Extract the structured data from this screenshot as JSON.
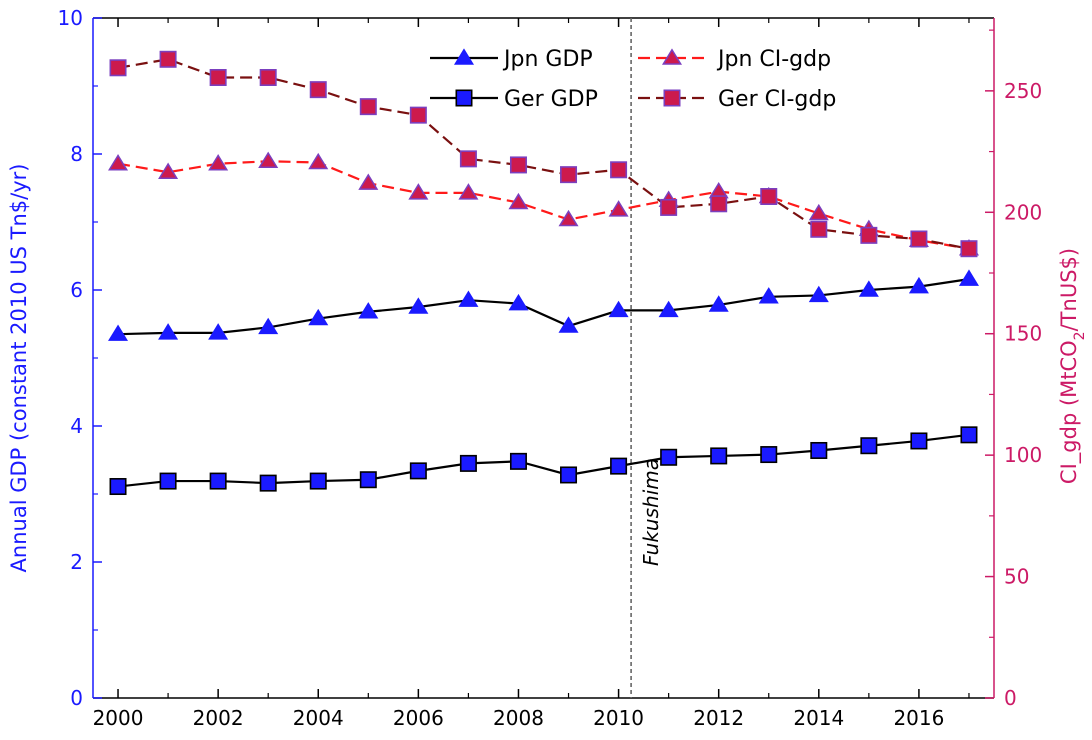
{
  "chart_data": {
    "type": "line",
    "x": [
      2000,
      2001,
      2002,
      2003,
      2004,
      2005,
      2006,
      2007,
      2008,
      2009,
      2010,
      2011,
      2012,
      2013,
      2014,
      2015,
      2016,
      2017
    ],
    "xlim": [
      1999.5,
      2017.5
    ],
    "xticks": [
      "2000",
      "2002",
      "2004",
      "2006",
      "2008",
      "2010",
      "2012",
      "2014",
      "2016"
    ],
    "ylabel_left": "Annual GDP (constant 2010 US Tn$/yr)",
    "ylim_left": [
      0,
      10
    ],
    "yticks_left": [
      "0",
      "2",
      "4",
      "6",
      "8",
      "10"
    ],
    "ylabel_right_prefix": "CI_gdp (MtCO",
    "ylabel_right_sub": "2",
    "ylabel_right_suffix": "/TnUS$)",
    "ylim_right": [
      0,
      280
    ],
    "yticks_right": [
      "0",
      "50",
      "100",
      "150",
      "200",
      "250"
    ],
    "series": [
      {
        "name": "Jpn GDP",
        "axis": "left",
        "marker": "triangle",
        "line": "solid",
        "line_color": "#000000",
        "marker_fill": "#1a1aff",
        "marker_edge": "#1a1aff",
        "values": [
          5.35,
          5.37,
          5.37,
          5.45,
          5.58,
          5.68,
          5.75,
          5.85,
          5.8,
          5.47,
          5.7,
          5.7,
          5.78,
          5.9,
          5.92,
          6.0,
          6.05,
          6.16
        ]
      },
      {
        "name": "Ger GDP",
        "axis": "left",
        "marker": "square",
        "line": "solid",
        "line_color": "#000000",
        "marker_fill": "#1a1aff",
        "marker_edge": "#000000",
        "values": [
          3.11,
          3.19,
          3.19,
          3.16,
          3.19,
          3.21,
          3.34,
          3.45,
          3.48,
          3.28,
          3.41,
          3.54,
          3.56,
          3.58,
          3.64,
          3.71,
          3.78,
          3.87
        ]
      },
      {
        "name": "Jpn CI-gdp",
        "axis": "right",
        "marker": "triangle",
        "line": "dashed",
        "line_color": "#ff1a1a",
        "marker_fill": "#cc1a4d",
        "marker_edge": "#7b3fbf",
        "values": [
          220,
          216.5,
          220,
          221,
          220.5,
          212,
          208,
          208,
          204,
          197,
          201,
          205,
          208.5,
          206.5,
          199.5,
          193,
          188.5,
          185
        ]
      },
      {
        "name": "Ger CI-gdp",
        "axis": "right",
        "marker": "square",
        "line": "dashed",
        "line_color": "#7a1010",
        "marker_fill": "#cc1a4d",
        "marker_edge": "#7b3fbf",
        "values": [
          259.5,
          263,
          255.5,
          255.5,
          250.5,
          243.5,
          240,
          222,
          219.5,
          215.5,
          217.5,
          202,
          203.5,
          206.5,
          193,
          190.5,
          189,
          185
        ]
      }
    ],
    "annotations": [
      {
        "text": "Fukushima",
        "x": 2010.25,
        "style": "vertical dashed line"
      }
    ],
    "legend": "top",
    "grid": false,
    "colors": {
      "left_axis": "#1a1aff",
      "right_axis": "#cc1a66"
    }
  }
}
